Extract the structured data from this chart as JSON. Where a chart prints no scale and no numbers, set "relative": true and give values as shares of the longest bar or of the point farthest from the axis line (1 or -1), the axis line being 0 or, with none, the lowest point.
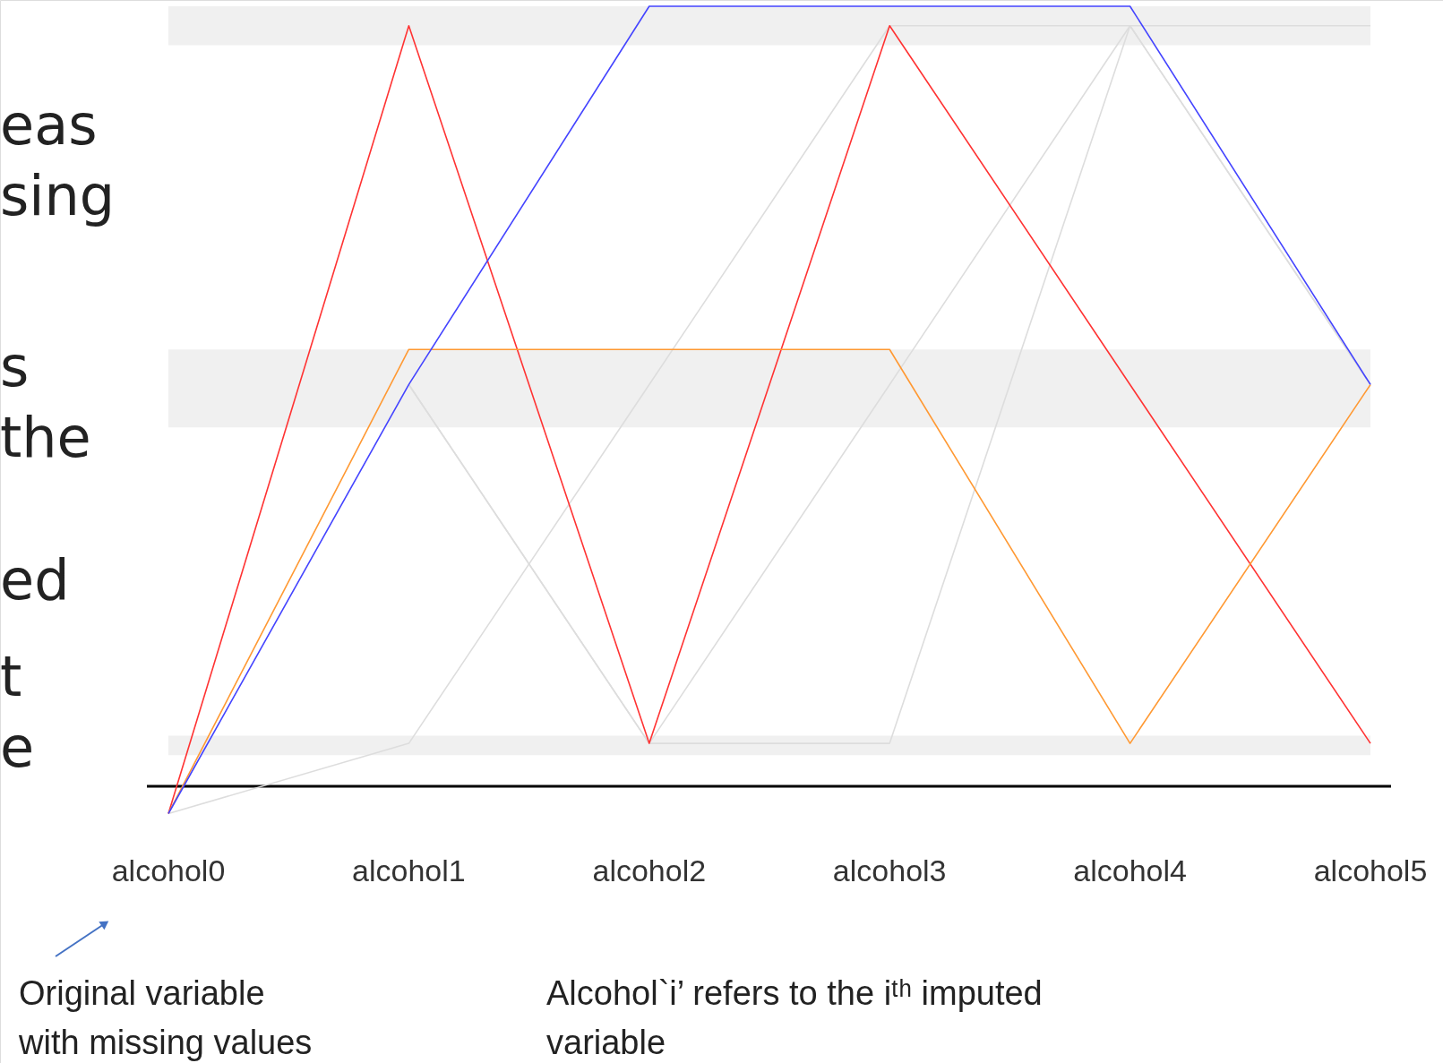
{
  "chart_data": {
    "type": "line",
    "relative": true,
    "categories": [
      "alcohol0",
      "alcohol1",
      "alcohol2",
      "alcohol3",
      "alcohol4",
      "alcohol5"
    ],
    "series": [
      {
        "color": "#dddddd",
        "values": [
          -0.035,
          0.055,
          0.515,
          0.975,
          0.975,
          0.515
        ]
      },
      {
        "color": "#dddddd",
        "values": [
          null,
          0.515,
          0.055,
          0.515,
          0.975,
          0.975
        ]
      },
      {
        "color": "#dddddd",
        "values": [
          null,
          0.515,
          0.055,
          0.055,
          0.975,
          0.515
        ]
      },
      {
        "color": "#ff3333",
        "values": [
          -0.035,
          0.975,
          0.055,
          0.975,
          0.515,
          0.055
        ]
      },
      {
        "color": "#ff9933",
        "values": [
          -0.035,
          0.56,
          0.56,
          0.56,
          0.055,
          0.515
        ]
      },
      {
        "color": "#4444ff",
        "values": [
          -0.035,
          0.515,
          1.0,
          1.0,
          1.0,
          0.515
        ]
      }
    ],
    "bands": [
      {
        "axis": "y",
        "from": 0.95,
        "to": 1.0,
        "color": "#f0f0f0"
      },
      {
        "axis": "y",
        "from": 0.46,
        "to": 0.56,
        "color": "#f0f0f0"
      },
      {
        "axis": "y",
        "from": 0.04,
        "to": 0.065,
        "color": "#f0f0f0"
      }
    ],
    "legend": false,
    "grid": false,
    "marker": "none",
    "line_style": "solid",
    "annotations": [
      "eas",
      "sing",
      "s",
      "the",
      "ed",
      "t",
      "e",
      "Original variable\nwith missing values",
      "Alcohol`i’ refers to the iᵗʰ imputed\nvariable"
    ]
  }
}
